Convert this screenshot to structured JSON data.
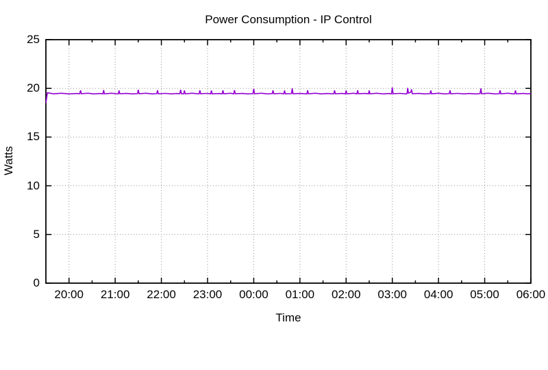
{
  "chart_data": {
    "type": "line",
    "title": "Power Consumption - IP Control",
    "xlabel": "Time",
    "ylabel": "Watts",
    "ylim": [
      0,
      25
    ],
    "y_ticks": [
      0,
      5,
      10,
      15,
      20,
      25
    ],
    "x_axis": {
      "start_time": "19:30",
      "end_time": "06:00",
      "total_minutes": 630,
      "tick_labels": [
        "20:00",
        "21:00",
        "22:00",
        "23:00",
        "00:00",
        "01:00",
        "02:00",
        "03:00",
        "04:00",
        "05:00",
        "06:00"
      ],
      "first_tick_offset_min": 30,
      "tick_interval_min": 60,
      "minor_first_offset_min": 0,
      "minor_tick_interval_min": 60
    },
    "grid": true,
    "grid_color": "#909090",
    "axis_color": "#000000",
    "background_color": "#ffffff",
    "series": [
      {
        "name": "power",
        "color": "#9400D3",
        "points": [
          [
            0,
            18.5
          ],
          [
            2,
            19.55
          ],
          [
            10,
            19.44
          ],
          [
            20,
            19.5
          ],
          [
            30,
            19.43
          ],
          [
            40,
            19.47
          ],
          [
            44,
            19.45
          ],
          [
            45,
            19.8
          ],
          [
            46,
            19.45
          ],
          [
            55,
            19.5
          ],
          [
            62,
            19.43
          ],
          [
            70,
            19.47
          ],
          [
            74,
            19.44
          ],
          [
            75,
            19.82
          ],
          [
            76,
            19.44
          ],
          [
            85,
            19.5
          ],
          [
            94,
            19.43
          ],
          [
            95,
            19.78
          ],
          [
            96,
            19.45
          ],
          [
            105,
            19.48
          ],
          [
            112,
            19.43
          ],
          [
            119,
            19.46
          ],
          [
            120,
            19.85
          ],
          [
            121,
            19.45
          ],
          [
            130,
            19.5
          ],
          [
            138,
            19.43
          ],
          [
            144,
            19.46
          ],
          [
            145,
            19.8
          ],
          [
            146,
            19.44
          ],
          [
            155,
            19.49
          ],
          [
            163,
            19.43
          ],
          [
            170,
            19.47
          ],
          [
            174,
            19.45
          ],
          [
            175,
            19.85
          ],
          [
            176,
            19.45
          ],
          [
            179,
            19.44
          ],
          [
            180,
            19.78
          ],
          [
            181,
            19.44
          ],
          [
            190,
            19.5
          ],
          [
            199,
            19.43
          ],
          [
            200,
            19.8
          ],
          [
            201,
            19.45
          ],
          [
            210,
            19.49
          ],
          [
            214,
            19.44
          ],
          [
            215,
            19.78
          ],
          [
            216,
            19.44
          ],
          [
            225,
            19.47
          ],
          [
            229,
            19.44
          ],
          [
            230,
            19.8
          ],
          [
            231,
            19.44
          ],
          [
            240,
            19.5
          ],
          [
            244,
            19.43
          ],
          [
            245,
            19.82
          ],
          [
            246,
            19.45
          ],
          [
            255,
            19.48
          ],
          [
            262,
            19.43
          ],
          [
            269,
            19.46
          ],
          [
            270,
            19.95
          ],
          [
            271,
            19.45
          ],
          [
            280,
            19.5
          ],
          [
            288,
            19.43
          ],
          [
            294,
            19.46
          ],
          [
            295,
            19.8
          ],
          [
            296,
            19.44
          ],
          [
            305,
            19.49
          ],
          [
            309,
            19.44
          ],
          [
            310,
            19.78
          ],
          [
            311,
            19.44
          ],
          [
            319,
            19.46
          ],
          [
            320,
            20.0
          ],
          [
            321,
            19.45
          ],
          [
            330,
            19.48
          ],
          [
            339,
            19.43
          ],
          [
            340,
            19.8
          ],
          [
            341,
            19.44
          ],
          [
            350,
            19.5
          ],
          [
            358,
            19.43
          ],
          [
            365,
            19.47
          ],
          [
            374,
            19.44
          ],
          [
            375,
            19.8
          ],
          [
            376,
            19.44
          ],
          [
            385,
            19.48
          ],
          [
            389,
            19.44
          ],
          [
            390,
            19.78
          ],
          [
            391,
            19.44
          ],
          [
            400,
            19.5
          ],
          [
            404,
            19.43
          ],
          [
            405,
            19.8
          ],
          [
            406,
            19.45
          ],
          [
            415,
            19.48
          ],
          [
            419,
            19.44
          ],
          [
            420,
            19.78
          ],
          [
            421,
            19.44
          ],
          [
            430,
            19.5
          ],
          [
            438,
            19.43
          ],
          [
            445,
            19.47
          ],
          [
            449,
            19.44
          ],
          [
            450,
            20.1
          ],
          [
            451,
            19.45
          ],
          [
            460,
            19.49
          ],
          [
            468,
            19.43
          ],
          [
            469,
            19.45
          ],
          [
            470,
            20.05
          ],
          [
            471,
            19.5
          ],
          [
            474,
            19.6
          ],
          [
            475,
            19.9
          ],
          [
            476,
            19.45
          ],
          [
            485,
            19.48
          ],
          [
            492,
            19.43
          ],
          [
            499,
            19.46
          ],
          [
            500,
            19.78
          ],
          [
            501,
            19.44
          ],
          [
            510,
            19.5
          ],
          [
            518,
            19.43
          ],
          [
            524,
            19.46
          ],
          [
            525,
            19.8
          ],
          [
            526,
            19.44
          ],
          [
            535,
            19.49
          ],
          [
            543,
            19.43
          ],
          [
            550,
            19.47
          ],
          [
            558,
            19.43
          ],
          [
            564,
            19.46
          ],
          [
            565,
            20.0
          ],
          [
            566,
            19.45
          ],
          [
            575,
            19.5
          ],
          [
            583,
            19.43
          ],
          [
            589,
            19.45
          ],
          [
            590,
            19.8
          ],
          [
            591,
            19.44
          ],
          [
            600,
            19.5
          ],
          [
            608,
            19.43
          ],
          [
            609,
            19.45
          ],
          [
            610,
            19.78
          ],
          [
            611,
            19.44
          ],
          [
            620,
            19.48
          ],
          [
            625,
            19.44
          ],
          [
            630,
            19.46
          ]
        ]
      }
    ]
  }
}
